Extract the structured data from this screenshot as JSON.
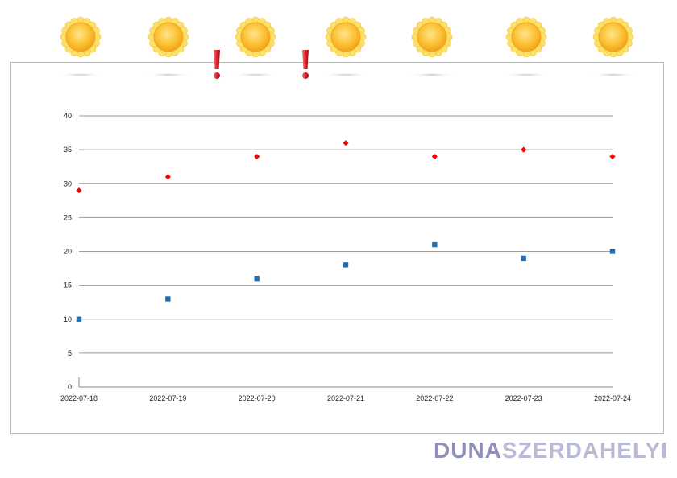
{
  "chart_data": {
    "type": "scatter",
    "title": "",
    "xlabel": "",
    "ylabel": "",
    "categories": [
      "2022-07-18",
      "2022-07-19",
      "2022-07-20",
      "2022-07-21",
      "2022-07-22",
      "2022-07-23",
      "2022-07-24"
    ],
    "ylim": [
      0,
      40
    ],
    "yticks": [
      0,
      5,
      10,
      15,
      20,
      25,
      30,
      35,
      40
    ],
    "grid": true,
    "legend": "none",
    "series": [
      {
        "values": [
          29,
          31,
          34,
          36,
          34,
          35,
          34
        ],
        "color": "#ff0000",
        "marker": "diamond"
      },
      {
        "values": [
          10,
          13,
          16,
          18,
          21,
          19,
          20
        ],
        "color": "#1f6fb5",
        "marker": "square"
      }
    ]
  },
  "weather_icons": [
    "sun-icon",
    "sun-icon",
    "sun-icon",
    "sun-icon",
    "sun-icon",
    "sun-icon",
    "sun-icon"
  ],
  "warnings": [
    {
      "after_index": 1,
      "icon": "exclamation-icon",
      "color": "#e0202a"
    },
    {
      "after_index": 2,
      "icon": "exclamation-icon",
      "color": "#e0202a"
    }
  ],
  "logo": {
    "part1": "DUNA",
    "part2": "SZERDAHELYI"
  }
}
